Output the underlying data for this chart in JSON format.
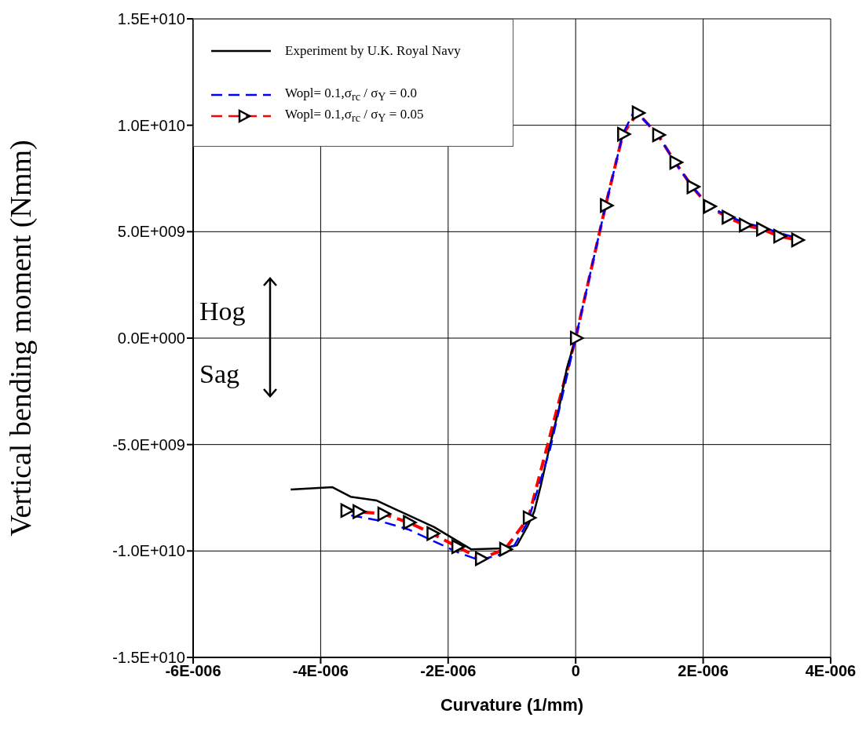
{
  "chart_data": {
    "type": "line",
    "xlabel": "Curvature (1/mm)",
    "ylabel": "Vertical bending moment (Nmm)",
    "xlim": [
      -6e-06,
      4e-06
    ],
    "xticks": [
      {
        "value": -6e-06,
        "label": "-6E-006"
      },
      {
        "value": -4e-06,
        "label": "-4E-006"
      },
      {
        "value": -2e-06,
        "label": "-2E-006"
      },
      {
        "value": 0,
        "label": "0"
      },
      {
        "value": 2e-06,
        "label": "2E-006"
      },
      {
        "value": 4e-06,
        "label": "4E-006"
      }
    ],
    "ylim": [
      -15000000000.0,
      15000000000.0
    ],
    "yticks": [
      {
        "value": -15000000000.0,
        "label": "-1.5E+010"
      },
      {
        "value": -10000000000.0,
        "label": "-1.0E+010"
      },
      {
        "value": -5000000000.0,
        "label": "-5.0E+009"
      },
      {
        "value": 0,
        "label": "0.0E+000"
      },
      {
        "value": 5000000000.0,
        "label": "5.0E+009"
      },
      {
        "value": 10000000000.0,
        "label": "1.0E+010"
      },
      {
        "value": 15000000000.0,
        "label": "1.5E+010"
      }
    ],
    "grid": true,
    "legend": "top left",
    "annotations": [
      "Hog",
      "Sag"
    ],
    "series": [
      {
        "name": "Experiment by U.K. Royal Navy",
        "color": "#000000",
        "line_style": "solid",
        "marker": "none",
        "x": [
          -4.47e-06,
          -3.82e-06,
          -3.53e-06,
          -3.12e-06,
          -2.22e-06,
          -1.64e-06,
          -1.15e-06,
          -9.2e-07,
          -7.5e-07,
          -6.5e-07,
          -5.5e-07,
          -4.1e-07,
          -2.6e-07,
          -1.4e-07,
          0
        ],
        "values": [
          -7110000000.0,
          -7000000000.0,
          -7450000000.0,
          -7630000000.0,
          -8880000000.0,
          -9920000000.0,
          -9880000000.0,
          -9730000000.0,
          -8810000000.0,
          -8150000000.0,
          -6970000000.0,
          -5120000000.0,
          -3280000000.0,
          -1440000000.0,
          0
        ]
      },
      {
        "name": "Wopl= 0.1,σ$_{rc}$ / σ$_{Y}$  = 0.0",
        "color": "#0000ff",
        "line_style": "dashed",
        "marker": "none",
        "x": [
          -3.52e-06,
          -3.12e-06,
          -2.62e-06,
          -2.22e-06,
          -1.82e-06,
          -1.51e-06,
          -1.15e-06,
          -9.6e-07,
          -7.5e-07,
          -4e-07,
          0,
          4.7e-07,
          7.4e-07,
          9.2e-07,
          9.7e-07,
          1.29e-06,
          1.56e-06,
          1.83e-06,
          2.09e-06,
          2.38e-06,
          2.65e-06,
          2.92e-06,
          3.19e-06,
          3.47e-06
        ],
        "values": [
          -8330000000.0,
          -8550000000.0,
          -8990000000.0,
          -9550000000.0,
          -10100000000.0,
          -10430000000.0,
          -10140000000.0,
          -9730000000.0,
          -8630000000.0,
          -5200000000.0,
          0,
          6230000000.0,
          9580000000.0,
          10690000000.0,
          10580000000.0,
          9550000000.0,
          8260000000.0,
          7110000000.0,
          6190000000.0,
          5750000000.0,
          5420000000.0,
          5220000000.0,
          4950000000.0,
          4700000000.0
        ]
      },
      {
        "name": "Wopl= 0.1,σ$_{rc}$ / σ$_{Y}$  = 0.05",
        "color": "#ff0000",
        "line_style": "dashed",
        "marker": "triangle",
        "x": [
          -3.6e-06,
          -3.41e-06,
          -3.02e-06,
          -2.62e-06,
          -2.25e-06,
          -1.86e-06,
          -1.49e-06,
          -1.11e-06,
          -7.4e-07,
          0,
          4.7e-07,
          7.4e-07,
          9.7e-07,
          1.29e-06,
          1.56e-06,
          1.83e-06,
          2.09e-06,
          2.38e-06,
          2.65e-06,
          2.92e-06,
          3.19e-06,
          3.47e-06
        ],
        "values": [
          -8100000000.0,
          -8150000000.0,
          -8260000000.0,
          -8660000000.0,
          -9180000000.0,
          -9800000000.0,
          -10360000000.0,
          -9920000000.0,
          -8440000000.0,
          0,
          6230000000.0,
          9580000000.0,
          10580000000.0,
          9550000000.0,
          8260000000.0,
          7110000000.0,
          6190000000.0,
          5680000000.0,
          5310000000.0,
          5120000000.0,
          4790000000.0,
          4610000000.0
        ]
      }
    ]
  }
}
